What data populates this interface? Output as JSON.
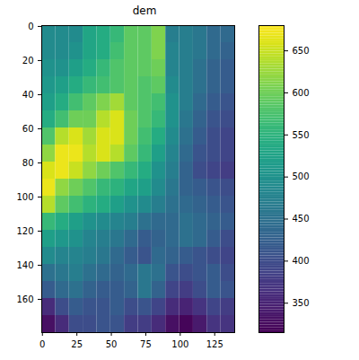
{
  "chart_data": {
    "type": "heatmap",
    "title": "dem",
    "color": "viridis",
    "xlim": [
      -0.5,
      139.5
    ],
    "ylim": [
      179.5,
      -0.5
    ],
    "xticks": [
      0,
      25,
      50,
      75,
      100,
      125
    ],
    "yticks": [
      0,
      20,
      40,
      60,
      80,
      100,
      120,
      140,
      160
    ],
    "colorbar_lim": [
      315,
      680
    ],
    "colorbar_ticks": [
      350,
      400,
      450,
      500,
      550,
      600,
      650
    ],
    "cells": [
      [
        490,
        490,
        490,
        530,
        540,
        560,
        590,
        590,
        610,
        470,
        470,
        460,
        440,
        440
      ],
      [
        490,
        490,
        500,
        530,
        540,
        570,
        590,
        590,
        610,
        480,
        470,
        460,
        440,
        430
      ],
      [
        500,
        500,
        520,
        540,
        560,
        580,
        590,
        590,
        600,
        480,
        470,
        450,
        430,
        420
      ],
      [
        510,
        520,
        540,
        560,
        570,
        580,
        590,
        580,
        590,
        490,
        470,
        450,
        430,
        420
      ],
      [
        520,
        540,
        570,
        590,
        610,
        630,
        590,
        580,
        570,
        500,
        470,
        440,
        420,
        410
      ],
      [
        540,
        570,
        600,
        600,
        640,
        660,
        600,
        580,
        560,
        500,
        460,
        430,
        410,
        400
      ],
      [
        580,
        640,
        660,
        630,
        660,
        660,
        600,
        570,
        540,
        490,
        450,
        420,
        400,
        390
      ],
      [
        620,
        670,
        670,
        640,
        660,
        640,
        590,
        560,
        520,
        480,
        440,
        410,
        400,
        390
      ],
      [
        660,
        670,
        650,
        620,
        600,
        580,
        560,
        540,
        500,
        470,
        430,
        400,
        390,
        380
      ],
      [
        670,
        620,
        600,
        580,
        560,
        550,
        530,
        520,
        490,
        460,
        430,
        420,
        410,
        400
      ],
      [
        640,
        590,
        570,
        550,
        540,
        520,
        500,
        490,
        470,
        450,
        440,
        430,
        420,
        410
      ],
      [
        560,
        540,
        520,
        500,
        490,
        480,
        470,
        450,
        440,
        440,
        450,
        440,
        430,
        420
      ],
      [
        520,
        510,
        500,
        480,
        470,
        460,
        440,
        420,
        430,
        440,
        450,
        440,
        420,
        400
      ],
      [
        490,
        480,
        480,
        470,
        460,
        440,
        420,
        410,
        440,
        430,
        420,
        410,
        400,
        390
      ],
      [
        450,
        460,
        470,
        450,
        440,
        430,
        440,
        460,
        450,
        410,
        400,
        410,
        420,
        400
      ],
      [
        420,
        440,
        450,
        430,
        420,
        420,
        430,
        460,
        430,
        390,
        380,
        400,
        420,
        410
      ],
      [
        360,
        400,
        420,
        410,
        410,
        420,
        400,
        410,
        390,
        360,
        350,
        370,
        390,
        380
      ],
      [
        330,
        360,
        400,
        400,
        410,
        410,
        380,
        380,
        360,
        330,
        320,
        340,
        370,
        370
      ]
    ]
  }
}
